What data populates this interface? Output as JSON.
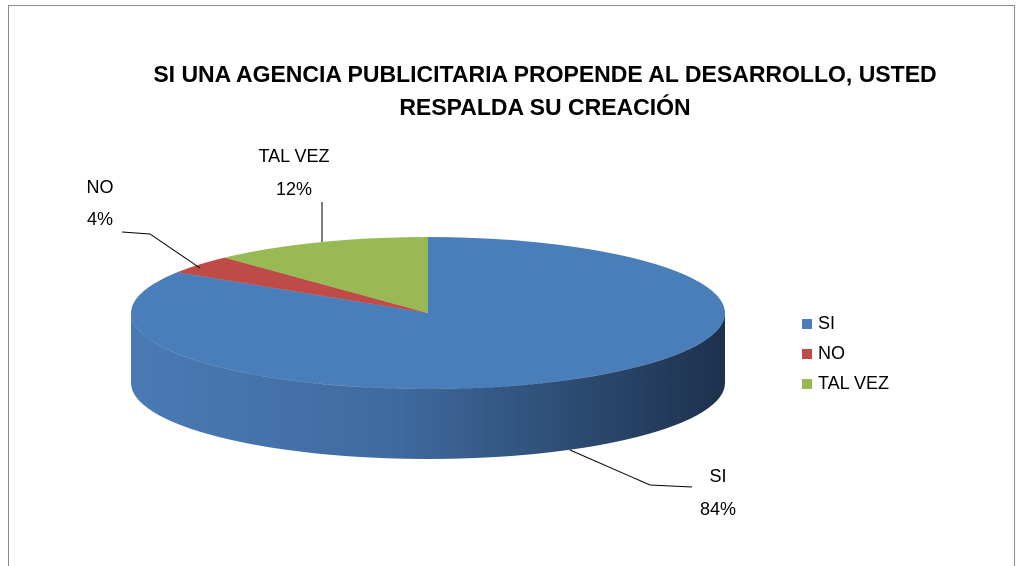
{
  "chart_data": {
    "type": "pie",
    "title": "SI UNA AGENCIA PUBLICITARIA PROPENDE AL DESARROLLO, USTED RESPALDA SU CREACIÓN",
    "categories": [
      "SI",
      "NO",
      "TAL VEZ"
    ],
    "values": [
      84,
      4,
      12
    ],
    "value_labels": [
      "84%",
      "4%",
      "12%"
    ],
    "colors": [
      "#4a7ebb",
      "#be4b48",
      "#98b954"
    ],
    "legend": "right",
    "style": "3d"
  }
}
